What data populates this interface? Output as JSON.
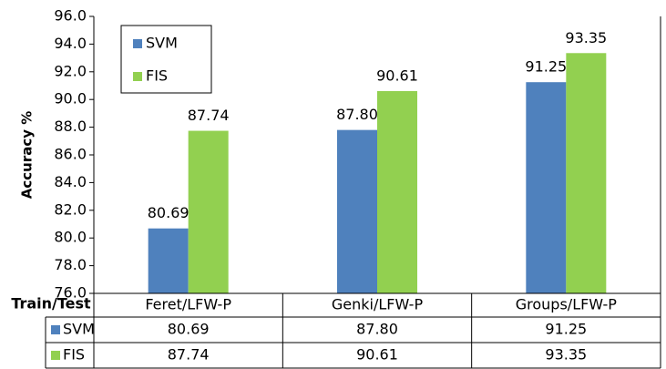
{
  "chart_data": {
    "type": "bar",
    "ylabel": "Accuracy %",
    "table_header": "Train/Test",
    "categories": [
      "Feret/LFW-P",
      "Genki/LFW-P",
      "Groups/LFW-P"
    ],
    "series": [
      {
        "name": "SVM",
        "color": "#4f81bd",
        "values": [
          80.69,
          87.8,
          91.25
        ],
        "value_labels": [
          "80.69",
          "87.80",
          "91.25"
        ]
      },
      {
        "name": "FIS",
        "color": "#92d050",
        "values": [
          87.74,
          90.61,
          93.35
        ],
        "value_labels": [
          "87.74",
          "90.61",
          "93.35"
        ]
      }
    ],
    "ylim": [
      76,
      96
    ],
    "yticks": [
      {
        "value": 76,
        "label": "76.0"
      },
      {
        "value": 78,
        "label": "78.0"
      },
      {
        "value": 80,
        "label": "80.0"
      },
      {
        "value": 82,
        "label": "82.0"
      },
      {
        "value": 84,
        "label": "84.0"
      },
      {
        "value": 86,
        "label": "86.0"
      },
      {
        "value": 88,
        "label": "88.0"
      },
      {
        "value": 90,
        "label": "90.0"
      },
      {
        "value": 92,
        "label": "92.0"
      },
      {
        "value": 94,
        "label": "94.0"
      },
      {
        "value": 96,
        "label": "96.0"
      }
    ],
    "legend": "upper left"
  }
}
